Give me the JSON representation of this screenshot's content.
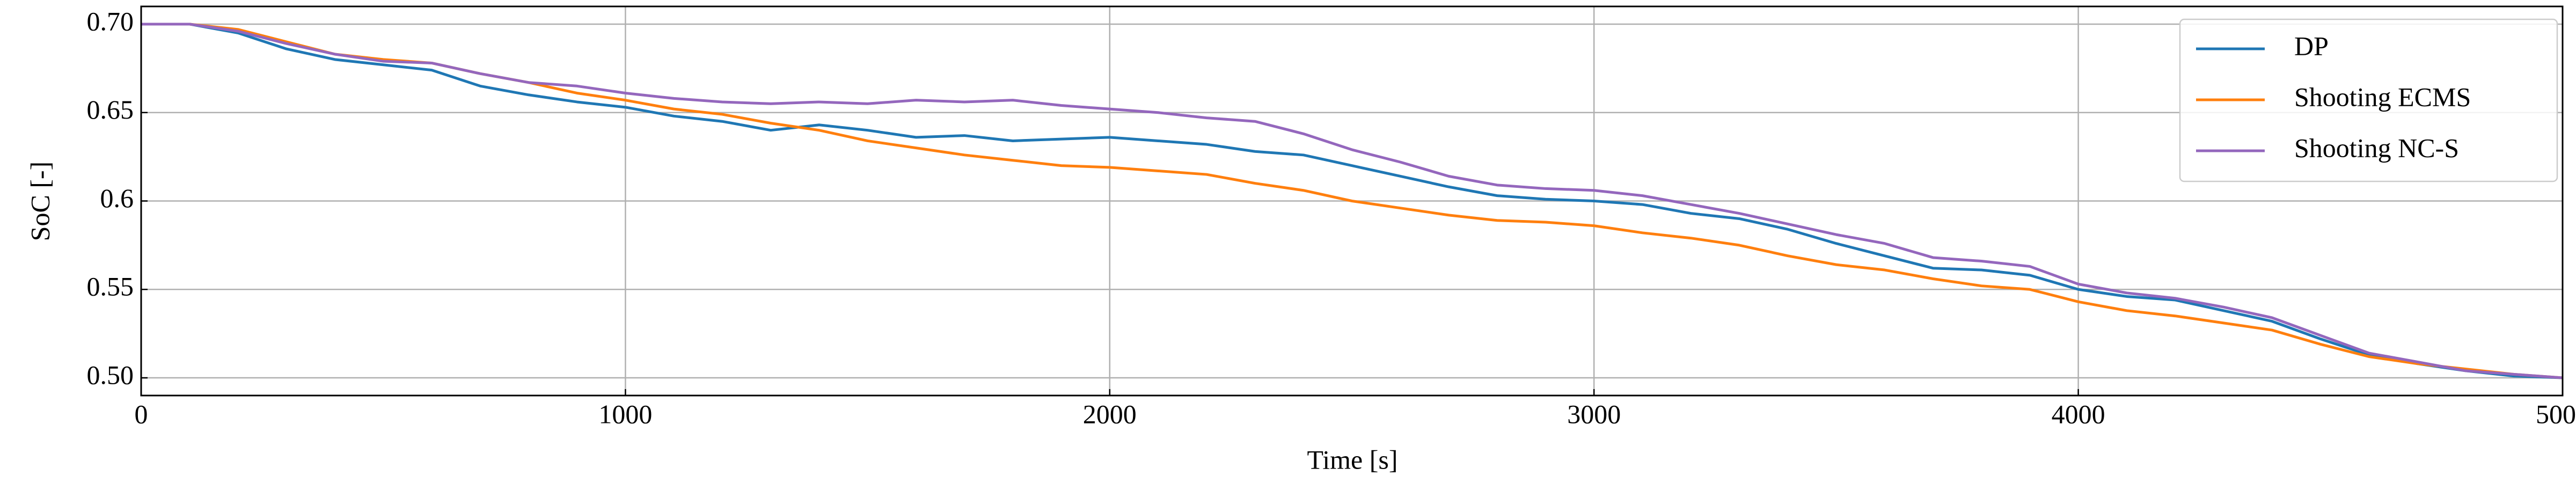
{
  "chart_data": {
    "type": "line",
    "xlabel": "Time [s]",
    "ylabel": "SoC [-]",
    "x": [
      0,
      100,
      200,
      300,
      400,
      500,
      600,
      700,
      800,
      900,
      1000,
      1100,
      1200,
      1300,
      1400,
      1500,
      1600,
      1700,
      1800,
      1900,
      2000,
      2100,
      2200,
      2300,
      2400,
      2500,
      2600,
      2700,
      2800,
      2900,
      3000,
      3100,
      3200,
      3300,
      3400,
      3500,
      3600,
      3700,
      3800,
      3900,
      4000,
      4100,
      4200,
      4300,
      4400,
      4500,
      4600,
      4700,
      4800,
      4900,
      5000
    ],
    "series": [
      {
        "name": "DP",
        "color": "#1f77b4",
        "values": [
          0.7,
          0.7,
          0.695,
          0.686,
          0.68,
          0.677,
          0.674,
          0.665,
          0.66,
          0.656,
          0.653,
          0.648,
          0.645,
          0.64,
          0.643,
          0.64,
          0.636,
          0.637,
          0.634,
          0.635,
          0.636,
          0.634,
          0.632,
          0.628,
          0.626,
          0.62,
          0.614,
          0.608,
          0.603,
          0.601,
          0.6,
          0.598,
          0.593,
          0.59,
          0.584,
          0.576,
          0.569,
          0.562,
          0.561,
          0.558,
          0.55,
          0.546,
          0.544,
          0.538,
          0.532,
          0.522,
          0.513,
          0.508,
          0.504,
          0.501,
          0.5
        ]
      },
      {
        "name": "Shooting ECMS",
        "color": "#ff7f0e",
        "values": [
          0.7,
          0.7,
          0.697,
          0.69,
          0.683,
          0.68,
          0.678,
          0.672,
          0.667,
          0.661,
          0.657,
          0.652,
          0.649,
          0.644,
          0.64,
          0.634,
          0.63,
          0.626,
          0.623,
          0.62,
          0.619,
          0.617,
          0.615,
          0.61,
          0.606,
          0.6,
          0.596,
          0.592,
          0.589,
          0.588,
          0.586,
          0.582,
          0.579,
          0.575,
          0.569,
          0.564,
          0.561,
          0.556,
          0.552,
          0.55,
          0.543,
          0.538,
          0.535,
          0.531,
          0.527,
          0.519,
          0.512,
          0.508,
          0.505,
          0.502,
          0.5
        ]
      },
      {
        "name": "Shooting NC-S",
        "color": "#9467bd",
        "values": [
          0.7,
          0.7,
          0.696,
          0.689,
          0.683,
          0.679,
          0.678,
          0.672,
          0.667,
          0.665,
          0.661,
          0.658,
          0.656,
          0.655,
          0.656,
          0.655,
          0.657,
          0.656,
          0.657,
          0.654,
          0.652,
          0.65,
          0.647,
          0.645,
          0.638,
          0.629,
          0.622,
          0.614,
          0.609,
          0.607,
          0.606,
          0.603,
          0.598,
          0.593,
          0.587,
          0.581,
          0.576,
          0.568,
          0.566,
          0.563,
          0.553,
          0.548,
          0.545,
          0.54,
          0.534,
          0.524,
          0.514,
          0.509,
          0.504,
          0.502,
          0.5
        ]
      }
    ],
    "xlim": [
      0,
      5000
    ],
    "ylim": [
      0.49,
      0.71
    ],
    "xticks": [
      0,
      1000,
      2000,
      3000,
      4000,
      5000
    ],
    "yticks": [
      {
        "value": 0.5,
        "label": "0.50"
      },
      0.55,
      0.6,
      0.65,
      {
        "value": 0.7,
        "label": "0.70"
      }
    ],
    "grid": true,
    "legend": "upper right"
  }
}
